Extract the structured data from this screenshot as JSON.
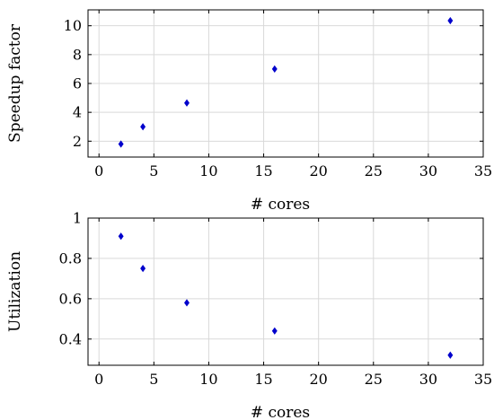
{
  "chart_data": [
    {
      "type": "scatter",
      "x": [
        2,
        4,
        8,
        16,
        32
      ],
      "y": [
        1.8,
        3.0,
        4.65,
        7.0,
        10.35
      ],
      "xlabel": "# cores",
      "ylabel": "Speedup factor",
      "xlim": [
        -1,
        35
      ],
      "ylim": [
        0.9,
        11.1
      ],
      "xticks": [
        "0",
        "5",
        "10",
        "15",
        "20",
        "25",
        "30",
        "35"
      ],
      "yticks": [
        "2",
        "4",
        "6",
        "8",
        "10"
      ],
      "grid": true,
      "marker_color": "#0000cc",
      "marker": "diamond"
    },
    {
      "type": "scatter",
      "x": [
        2,
        4,
        8,
        16,
        32
      ],
      "y": [
        0.91,
        0.75,
        0.58,
        0.44,
        0.32
      ],
      "xlabel": "# cores",
      "ylabel": "Utilization",
      "xlim": [
        -1,
        35
      ],
      "ylim": [
        0.27,
        1.0
      ],
      "xticks": [
        "0",
        "5",
        "10",
        "15",
        "20",
        "25",
        "30",
        "35"
      ],
      "yticks": [
        "0.4",
        "0.6",
        "0.8",
        "1"
      ],
      "grid": true,
      "marker_color": "#0000cc",
      "marker": "diamond"
    }
  ]
}
